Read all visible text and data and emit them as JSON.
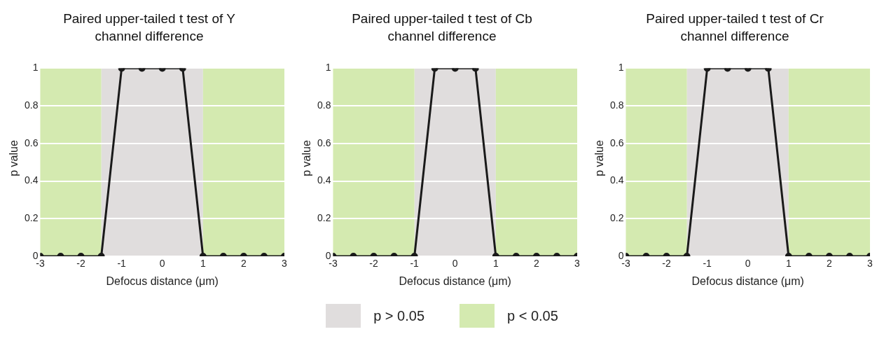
{
  "chart_data": [
    {
      "type": "line",
      "title": "Paired upper-tailed t test of Y channel difference",
      "xlabel": "Defocus distance (μm)",
      "ylabel": "p value",
      "x": [
        -3,
        -2.5,
        -2,
        -1.5,
        -1,
        -0.5,
        0,
        0.5,
        1,
        1.5,
        2,
        2.5,
        3
      ],
      "series": [
        {
          "color": "#1a1a1a",
          "values": [
            0,
            0,
            0,
            0,
            1,
            1,
            1,
            1,
            0,
            0,
            0,
            0,
            0
          ]
        }
      ],
      "bands": [
        {
          "axis": "x",
          "from": -1.5,
          "to": 1,
          "label": "p > 0.05",
          "color": "#e0dddd"
        },
        {
          "axis": "x",
          "from": -3,
          "to": -1.5,
          "label": "p < 0.05",
          "color": "#d4eab0"
        },
        {
          "axis": "x",
          "from": 1,
          "to": 3,
          "color": "#d4eab0"
        }
      ],
      "xlim": [
        -3,
        3
      ],
      "xticks": [
        -3,
        -2,
        -1,
        0,
        1,
        2,
        3
      ],
      "ylim": [
        0,
        1
      ],
      "yticks": [
        0,
        0.2,
        0.4,
        0.6,
        0.8,
        1
      ],
      "grid": "y",
      "legend": "bottom",
      "marker": "circle",
      "line_style": "solid"
    },
    {
      "type": "line",
      "title": "Paired upper-tailed t test of Cb channel difference",
      "xlabel": "Defocus distance (μm)",
      "ylabel": "p value",
      "x": [
        -3,
        -2.5,
        -2,
        -1.5,
        -1,
        -0.5,
        0,
        0.5,
        1,
        1.5,
        2,
        2.5,
        3
      ],
      "series": [
        {
          "color": "#1a1a1a",
          "values": [
            0,
            0,
            0,
            0,
            0,
            1,
            1,
            1,
            0,
            0,
            0,
            0,
            0
          ]
        }
      ],
      "bands": [
        {
          "axis": "x",
          "from": -1,
          "to": 1,
          "color": "#e0dddd"
        },
        {
          "axis": "x",
          "from": -3,
          "to": -1,
          "color": "#d4eab0"
        },
        {
          "axis": "x",
          "from": 1,
          "to": 3,
          "color": "#d4eab0"
        }
      ],
      "xlim": [
        -3,
        3
      ],
      "xticks": [
        -3,
        -2,
        -1,
        0,
        1,
        2,
        3
      ],
      "ylim": [
        0,
        1
      ],
      "yticks": [
        0,
        0.2,
        0.4,
        0.6,
        0.8,
        1
      ],
      "grid": "y",
      "marker": "circle",
      "line_style": "solid"
    },
    {
      "type": "line",
      "title": "Paired upper-tailed t test of Cr channel difference",
      "xlabel": "Defocus distance (μm)",
      "ylabel": "p value",
      "x": [
        -3,
        -2.5,
        -2,
        -1.5,
        -1,
        -0.5,
        0,
        0.5,
        1,
        1.5,
        2,
        2.5,
        3
      ],
      "series": [
        {
          "color": "#1a1a1a",
          "values": [
            0,
            0,
            0,
            0,
            1,
            1,
            1,
            1,
            0,
            0,
            0,
            0,
            0
          ]
        }
      ],
      "bands": [
        {
          "axis": "x",
          "from": -1.5,
          "to": 1,
          "color": "#e0dddd"
        },
        {
          "axis": "x",
          "from": -3,
          "to": -1.5,
          "color": "#d4eab0"
        },
        {
          "axis": "x",
          "from": 1,
          "to": 3,
          "color": "#d4eab0"
        }
      ],
      "xlim": [
        -3,
        3
      ],
      "xticks": [
        -3,
        -2,
        -1,
        0,
        1,
        2,
        3
      ],
      "ylim": [
        0,
        1
      ],
      "yticks": [
        0,
        0.2,
        0.4,
        0.6,
        0.8,
        1
      ],
      "grid": "y",
      "marker": "circle",
      "line_style": "solid"
    }
  ]
}
